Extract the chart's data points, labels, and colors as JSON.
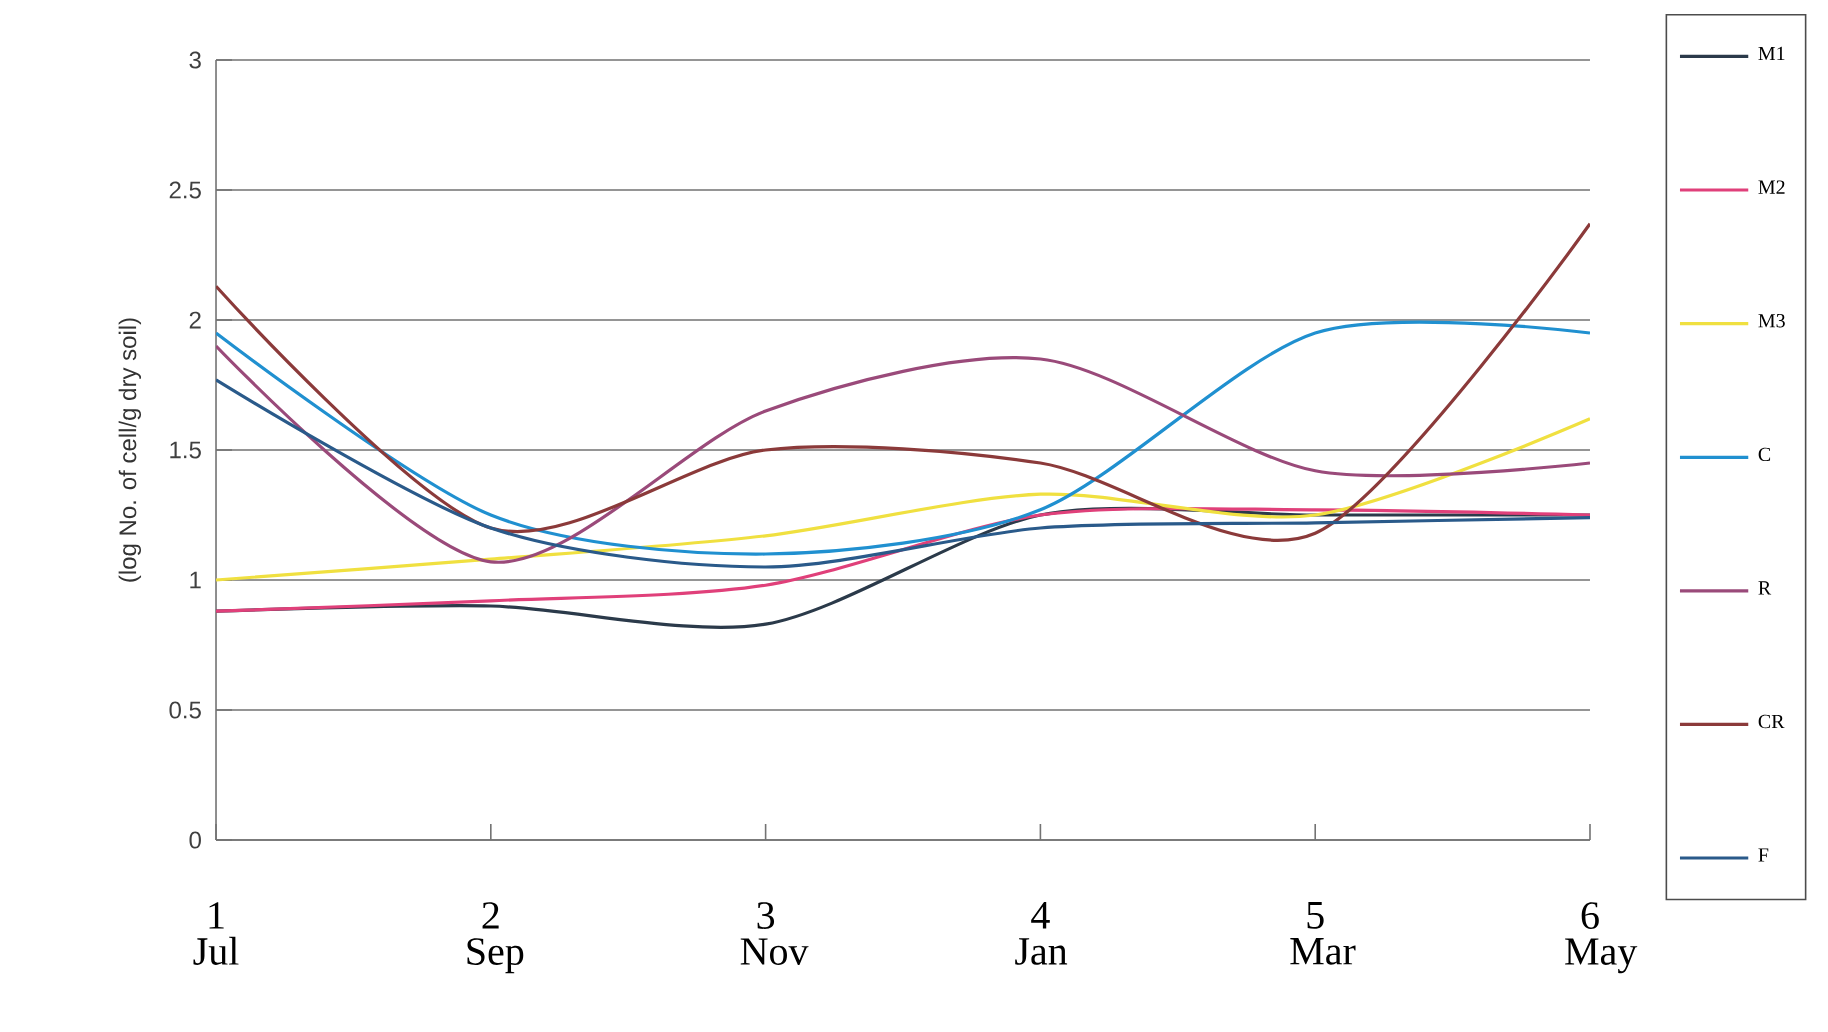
{
  "chart_data": {
    "type": "line",
    "ylabel": "(log No. of cell/g dry soil)",
    "categories": [
      "1 Jul",
      "2 Sep",
      "3 Nov",
      "4 Jan",
      "5 Mar",
      "6 May"
    ],
    "series": [
      {
        "name": "M1",
        "color": "#2b3a4a",
        "values": [
          0.88,
          0.9,
          0.83,
          1.25,
          1.25,
          1.25
        ]
      },
      {
        "name": "M2",
        "color": "#e0407a",
        "values": [
          0.88,
          0.92,
          0.98,
          1.25,
          1.27,
          1.25
        ]
      },
      {
        "name": "M3",
        "color": "#f0e040",
        "values": [
          1.0,
          1.08,
          1.17,
          1.33,
          1.25,
          1.62
        ]
      },
      {
        "name": "C",
        "color": "#2090d0",
        "values": [
          1.95,
          1.25,
          1.1,
          1.27,
          1.95,
          1.95
        ]
      },
      {
        "name": "R",
        "color": "#9a4a7a",
        "values": [
          1.9,
          1.07,
          1.65,
          1.85,
          1.42,
          1.45
        ]
      },
      {
        "name": "CR",
        "color": "#8b3a3a",
        "values": [
          2.13,
          1.2,
          1.5,
          1.45,
          1.18,
          2.37
        ]
      },
      {
        "name": "F",
        "color": "#2a5a8a",
        "values": [
          1.77,
          1.2,
          1.05,
          1.2,
          1.22,
          1.24
        ]
      }
    ],
    "ylim": [
      0,
      3
    ],
    "yticks": [
      0,
      0.5,
      1,
      1.5,
      2,
      2.5,
      3
    ],
    "grid": "y",
    "legend": "right",
    "marker": "none"
  }
}
